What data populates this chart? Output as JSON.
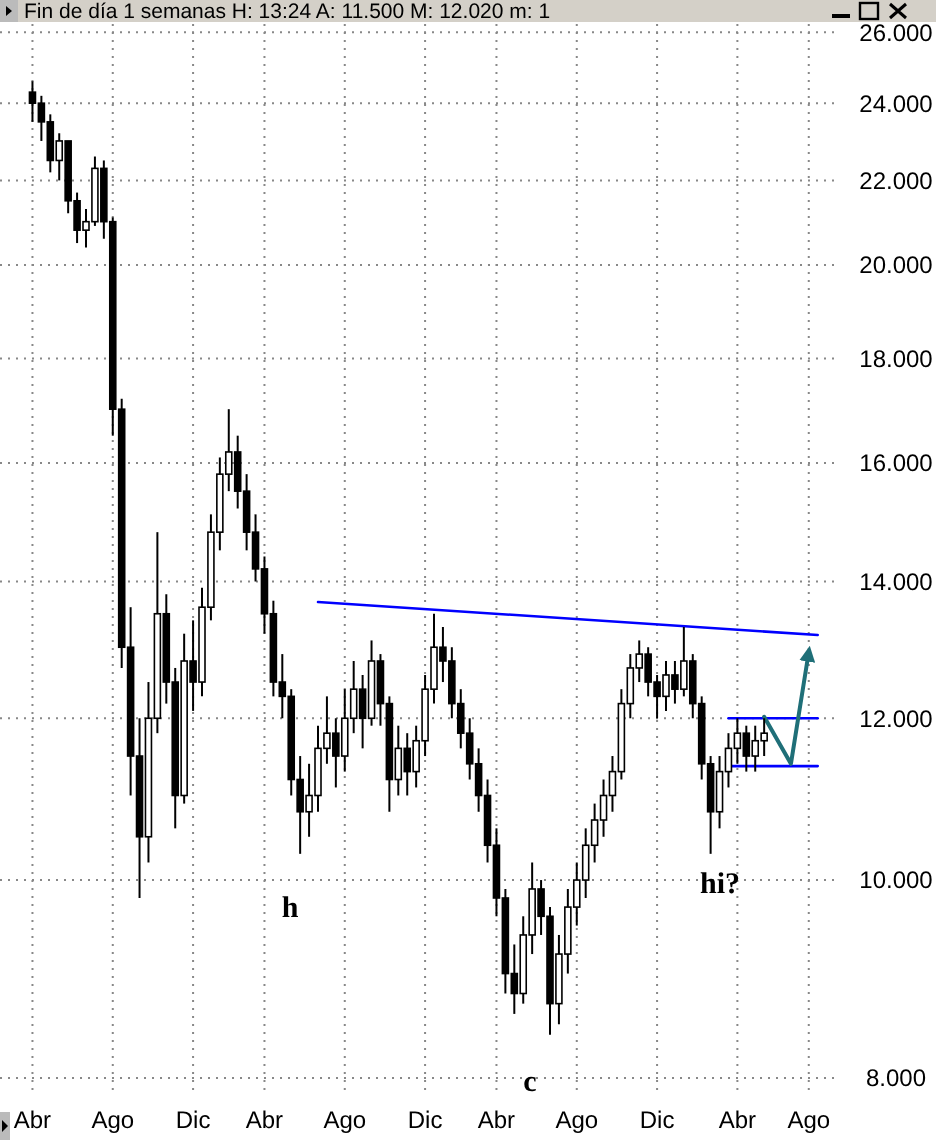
{
  "chart_data": {
    "type": "candlestick",
    "title": "Fin de día 1 semanas H: 13:24 A: 11.500 M: 12.020 m: 1",
    "categories": [
      "Abr",
      null,
      null,
      null,
      null,
      null,
      null,
      null,
      null,
      "Ago",
      null,
      null,
      null,
      null,
      null,
      null,
      null,
      null,
      "Dic",
      null,
      null,
      null,
      null,
      null,
      null,
      null,
      "Abr",
      null,
      null,
      null,
      null,
      null,
      null,
      null,
      null,
      "Ago",
      null,
      null,
      null,
      null,
      null,
      null,
      null,
      null,
      "Dic",
      null,
      null,
      null,
      null,
      null,
      null,
      null,
      "Abr",
      null,
      null,
      null,
      null,
      null,
      null,
      null,
      null,
      "Ago",
      null,
      null,
      null,
      null,
      null,
      null,
      null,
      null,
      "Dic",
      null,
      null,
      null,
      null,
      null,
      null,
      null,
      null,
      "Abr",
      null,
      null,
      null,
      null,
      null,
      null,
      null,
      "Ago",
      null,
      null,
      null
    ],
    "ohlc": [
      [
        24.3,
        24.6,
        23.5,
        24.0
      ],
      [
        24.0,
        24.2,
        23.0,
        23.5
      ],
      [
        23.5,
        23.7,
        22.2,
        22.5
      ],
      [
        22.5,
        23.2,
        22.0,
        23.0
      ],
      [
        23.0,
        23.0,
        21.2,
        21.5
      ],
      [
        21.5,
        21.7,
        20.5,
        20.8
      ],
      [
        20.8,
        21.3,
        20.4,
        21.0
      ],
      [
        21.0,
        22.6,
        20.9,
        22.3
      ],
      [
        22.3,
        22.5,
        20.6,
        21.0
      ],
      [
        21.0,
        21.1,
        16.5,
        17.0
      ],
      [
        17.0,
        17.2,
        12.7,
        13.0
      ],
      [
        13.0,
        13.6,
        11.0,
        11.5
      ],
      [
        11.5,
        12.0,
        9.8,
        10.5
      ],
      [
        10.5,
        12.5,
        10.2,
        12.0
      ],
      [
        12.0,
        14.8,
        11.8,
        13.5
      ],
      [
        13.5,
        13.8,
        12.2,
        12.5
      ],
      [
        12.5,
        12.7,
        10.6,
        11.0
      ],
      [
        11.0,
        13.2,
        10.9,
        12.8
      ],
      [
        12.8,
        13.4,
        12.1,
        12.5
      ],
      [
        12.5,
        13.9,
        12.3,
        13.6
      ],
      [
        13.6,
        15.1,
        13.4,
        14.8
      ],
      [
        14.8,
        16.1,
        14.5,
        15.8
      ],
      [
        15.8,
        17.0,
        15.5,
        16.2
      ],
      [
        16.2,
        16.5,
        15.2,
        15.5
      ],
      [
        15.5,
        15.8,
        14.5,
        14.8
      ],
      [
        14.8,
        15.1,
        14.0,
        14.2
      ],
      [
        14.2,
        14.4,
        13.2,
        13.5
      ],
      [
        13.5,
        13.7,
        12.3,
        12.5
      ],
      [
        12.5,
        12.9,
        12.0,
        12.3
      ],
      [
        12.3,
        12.4,
        11.0,
        11.2
      ],
      [
        11.2,
        11.5,
        10.3,
        10.8
      ],
      [
        10.8,
        11.4,
        10.5,
        11.0
      ],
      [
        11.0,
        11.9,
        10.8,
        11.6
      ],
      [
        11.6,
        12.3,
        11.4,
        11.8
      ],
      [
        11.8,
        12.0,
        11.1,
        11.5
      ],
      [
        11.5,
        12.4,
        11.3,
        12.0
      ],
      [
        12.0,
        12.8,
        11.8,
        12.4
      ],
      [
        12.4,
        12.6,
        11.6,
        12.0
      ],
      [
        12.0,
        13.1,
        11.9,
        12.8
      ],
      [
        12.8,
        12.9,
        11.9,
        12.2
      ],
      [
        12.2,
        12.3,
        10.8,
        11.2
      ],
      [
        11.2,
        11.9,
        11.0,
        11.6
      ],
      [
        11.6,
        11.8,
        11.0,
        11.3
      ],
      [
        11.3,
        11.9,
        11.1,
        11.7
      ],
      [
        11.7,
        12.6,
        11.5,
        12.4
      ],
      [
        12.4,
        13.5,
        12.2,
        13.0
      ],
      [
        13.0,
        13.3,
        12.5,
        12.8
      ],
      [
        12.8,
        13.0,
        12.0,
        12.2
      ],
      [
        12.2,
        12.4,
        11.6,
        11.8
      ],
      [
        11.8,
        12.0,
        11.2,
        11.4
      ],
      [
        11.4,
        11.6,
        10.8,
        11.0
      ],
      [
        11.0,
        11.2,
        10.2,
        10.4
      ],
      [
        10.4,
        10.6,
        9.6,
        9.8
      ],
      [
        9.8,
        9.9,
        8.8,
        9.0
      ],
      [
        9.0,
        9.3,
        8.6,
        8.8
      ],
      [
        8.8,
        9.6,
        8.7,
        9.4
      ],
      [
        9.4,
        10.2,
        9.2,
        9.9
      ],
      [
        9.9,
        10.0,
        9.4,
        9.6
      ],
      [
        9.6,
        9.7,
        8.4,
        8.7
      ],
      [
        8.7,
        9.4,
        8.5,
        9.2
      ],
      [
        9.2,
        9.9,
        9.0,
        9.7
      ],
      [
        9.7,
        10.2,
        9.5,
        10.0
      ],
      [
        10.0,
        10.6,
        9.8,
        10.4
      ],
      [
        10.4,
        10.9,
        10.2,
        10.7
      ],
      [
        10.7,
        11.2,
        10.5,
        11.0
      ],
      [
        11.0,
        11.5,
        10.8,
        11.3
      ],
      [
        11.3,
        12.4,
        11.2,
        12.2
      ],
      [
        12.2,
        12.9,
        12.0,
        12.7
      ],
      [
        12.7,
        13.1,
        12.5,
        12.9
      ],
      [
        12.9,
        13.0,
        12.3,
        12.5
      ],
      [
        12.5,
        12.6,
        12.0,
        12.3
      ],
      [
        12.3,
        12.8,
        12.1,
        12.6
      ],
      [
        12.6,
        12.8,
        12.2,
        12.4
      ],
      [
        12.4,
        13.3,
        12.3,
        12.8
      ],
      [
        12.8,
        12.9,
        12.0,
        12.2
      ],
      [
        12.2,
        12.3,
        11.2,
        11.4
      ],
      [
        11.4,
        11.5,
        10.3,
        10.8
      ],
      [
        10.8,
        11.5,
        10.6,
        11.3
      ],
      [
        11.3,
        11.8,
        11.1,
        11.6
      ],
      [
        11.6,
        12.0,
        11.4,
        11.8
      ],
      [
        11.8,
        11.9,
        11.3,
        11.5
      ],
      [
        11.5,
        11.9,
        11.3,
        11.7
      ],
      [
        11.7,
        12.0,
        11.5,
        11.8
      ],
      null,
      null,
      null,
      null,
      null,
      null,
      null,
      null
    ],
    "series": [
      {
        "type": "line",
        "color": "#0000ff",
        "values": [
          null,
          null,
          null,
          null,
          null,
          null,
          null,
          null,
          null,
          null,
          null,
          null,
          null,
          null,
          null,
          null,
          null,
          null,
          null,
          null,
          null,
          null,
          null,
          null,
          null,
          null,
          null,
          null,
          null,
          null,
          null,
          null,
          13.68,
          null,
          null,
          null,
          null,
          null,
          null,
          null,
          null,
          null,
          null,
          null,
          null,
          null,
          null,
          null,
          null,
          null,
          null,
          null,
          null,
          null,
          null,
          null,
          null,
          null,
          null,
          null,
          null,
          null,
          null,
          null,
          null,
          null,
          null,
          null,
          null,
          null,
          null,
          null,
          null,
          null,
          null,
          null,
          null,
          null,
          null,
          null,
          null,
          null,
          null,
          null,
          null,
          null,
          null,
          null,
          13.18,
          null,
          null
        ]
      },
      {
        "type": "line",
        "color": "#0000ff",
        "values": [
          null,
          null,
          null,
          null,
          null,
          null,
          null,
          null,
          null,
          null,
          null,
          null,
          null,
          null,
          null,
          null,
          null,
          null,
          null,
          null,
          null,
          null,
          null,
          null,
          null,
          null,
          null,
          null,
          null,
          null,
          null,
          null,
          null,
          null,
          null,
          null,
          null,
          null,
          null,
          null,
          null,
          null,
          null,
          null,
          null,
          null,
          null,
          null,
          null,
          null,
          null,
          null,
          null,
          null,
          null,
          null,
          null,
          null,
          null,
          null,
          null,
          null,
          null,
          null,
          null,
          null,
          null,
          null,
          null,
          null,
          null,
          null,
          null,
          null,
          null,
          null,
          null,
          null,
          12.0,
          null,
          null,
          null,
          null,
          null,
          null,
          null,
          null,
          null,
          12.0,
          null,
          null
        ]
      },
      {
        "type": "line",
        "color": "#0000ff",
        "values": [
          null,
          null,
          null,
          null,
          null,
          null,
          null,
          null,
          null,
          null,
          null,
          null,
          null,
          null,
          null,
          null,
          null,
          null,
          null,
          null,
          null,
          null,
          null,
          null,
          null,
          null,
          null,
          null,
          null,
          null,
          null,
          null,
          null,
          null,
          null,
          null,
          null,
          null,
          null,
          null,
          null,
          null,
          null,
          null,
          null,
          null,
          null,
          null,
          null,
          null,
          null,
          null,
          null,
          null,
          null,
          null,
          null,
          null,
          null,
          null,
          null,
          null,
          null,
          null,
          null,
          null,
          null,
          null,
          null,
          null,
          null,
          null,
          null,
          null,
          null,
          null,
          null,
          null,
          11.37,
          null,
          null,
          null,
          null,
          null,
          null,
          null,
          null,
          null,
          11.37,
          null,
          null
        ]
      },
      {
        "type": "line",
        "color": "#1f6f78",
        "values": [
          null,
          null,
          null,
          null,
          null,
          null,
          null,
          null,
          null,
          null,
          null,
          null,
          null,
          null,
          null,
          null,
          null,
          null,
          null,
          null,
          null,
          null,
          null,
          null,
          null,
          null,
          null,
          null,
          null,
          null,
          null,
          null,
          null,
          null,
          null,
          null,
          null,
          null,
          null,
          null,
          null,
          null,
          null,
          null,
          null,
          null,
          null,
          null,
          null,
          null,
          null,
          null,
          null,
          null,
          null,
          null,
          null,
          null,
          null,
          null,
          null,
          null,
          null,
          null,
          null,
          null,
          null,
          null,
          null,
          null,
          null,
          null,
          null,
          null,
          null,
          null,
          null,
          null,
          null,
          null,
          null,
          null,
          12.02,
          null,
          null,
          11.4,
          null,
          12.93,
          null,
          null,
          null
        ]
      }
    ],
    "annotations": [
      "h",
      "c",
      "hi?"
    ],
    "log": true,
    "grid": true,
    "ylim": [
      7.84,
      26.24
    ],
    "yticks": [
      {
        "value": 8,
        "label": "8.000"
      },
      {
        "value": 10,
        "label": "10.000"
      },
      {
        "value": 12,
        "label": "12.000"
      },
      {
        "value": 14,
        "label": "14.000"
      },
      {
        "value": 16,
        "label": "16.000"
      },
      {
        "value": 18,
        "label": "18.000"
      },
      {
        "value": 20,
        "label": "20.000"
      },
      {
        "value": 22,
        "label": "22.000"
      },
      {
        "value": 24,
        "label": "24.000"
      },
      {
        "value": 26,
        "label": "26.000"
      }
    ]
  }
}
